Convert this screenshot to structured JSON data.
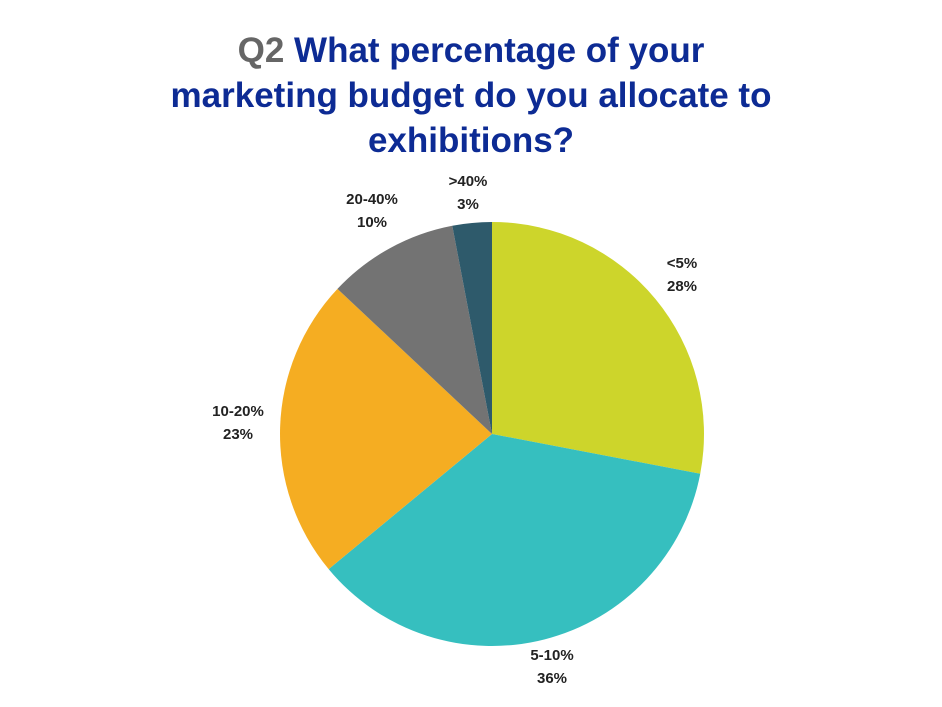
{
  "title": {
    "prefix": "Q2",
    "line1": "What percentage of your",
    "line2": "marketing budget do you allocate to",
    "line3": "exhibitions?"
  },
  "chart_data": {
    "type": "pie",
    "title": "Q2 What percentage of your marketing budget do you allocate to exhibitions?",
    "slices": [
      {
        "label": "<5%",
        "value": 28,
        "value_label": "28%",
        "color": "#cdd52b"
      },
      {
        "label": "5-10%",
        "value": 36,
        "value_label": "36%",
        "color": "#36bfbf"
      },
      {
        "label": "10-20%",
        "value": 23,
        "value_label": "23%",
        "color": "#f5ad22"
      },
      {
        "label": "20-40%",
        "value": 10,
        "value_label": "10%",
        "color": "#737373"
      },
      {
        "label": ">40%",
        "value": 3,
        "value_label": "3%",
        "color": "#2e5a6b"
      }
    ],
    "start": "12 o'clock",
    "direction": "clockwise"
  }
}
